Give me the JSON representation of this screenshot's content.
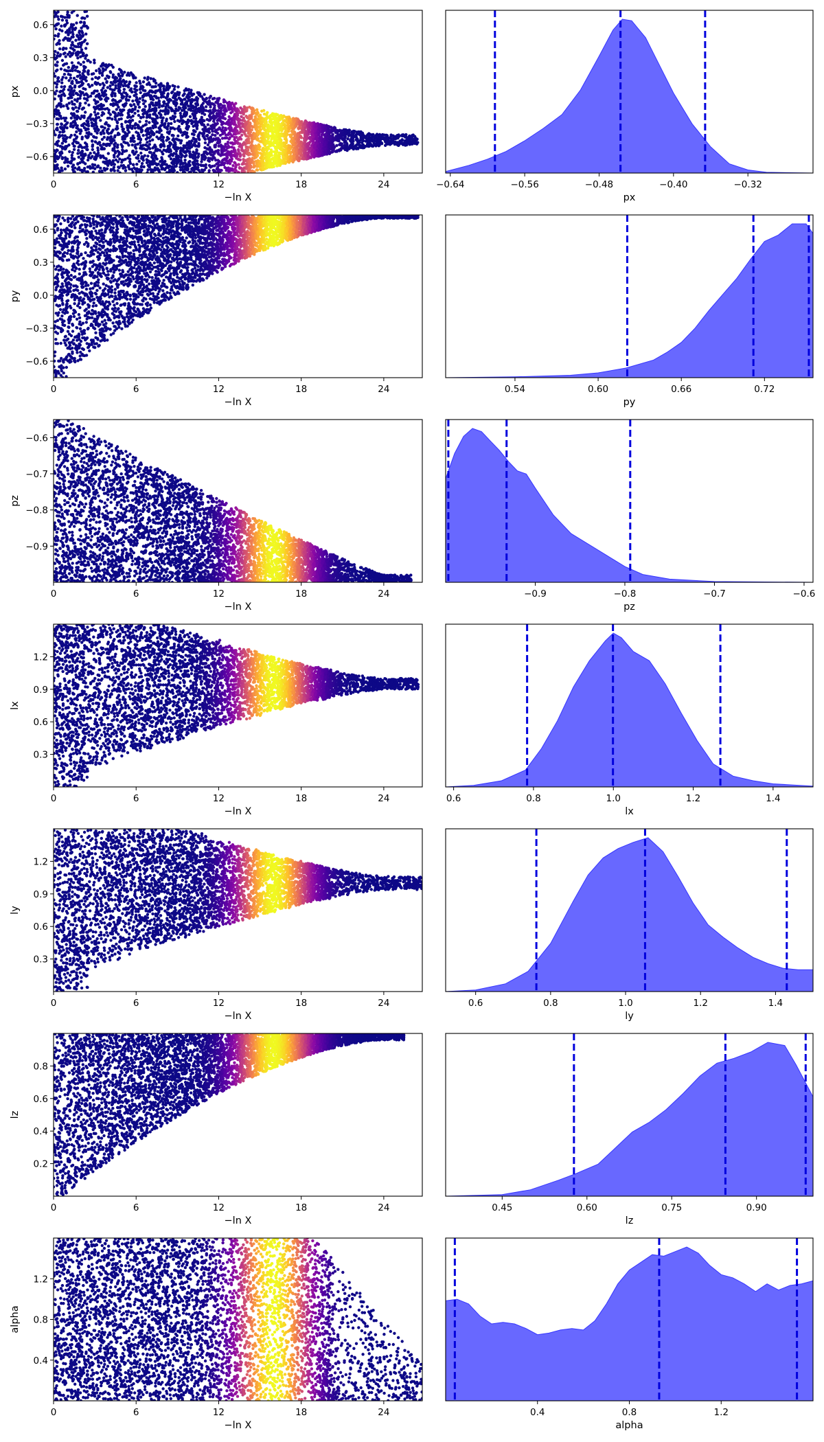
{
  "figure": {
    "x_trace_label": "−ln X",
    "trace_x_ticks": [
      "0",
      "6",
      "12",
      "18",
      "24"
    ],
    "trace_x_values": [
      0,
      6,
      12,
      18,
      24
    ],
    "trace_x_range": [
      0,
      26.8
    ],
    "colormap": "plasma",
    "colormap_colors": [
      "#0d0887",
      "#5302a3",
      "#8b0aa5",
      "#b83289",
      "#db5c68",
      "#f48849",
      "#febd2a",
      "#f0f921"
    ],
    "kde_color": "#5b5bff",
    "credible_line_color": "#0000dd"
  },
  "chart_data": [
    {
      "param": "px",
      "type": "scatter+kde",
      "trace": {
        "ylabel": "px",
        "ylim": [
          -0.75,
          0.73
        ],
        "yticks": [
          "0.6",
          "0.3",
          "0.0",
          "−0.3",
          "−0.6"
        ],
        "ytick_values": [
          0.6,
          0.3,
          0.0,
          -0.3,
          -0.6
        ],
        "shape": "funnel",
        "converge": -0.45,
        "spread_end": 0.05,
        "asym": 0.0,
        "max_x": 26.5
      },
      "marginal": {
        "xlabel": "px",
        "xlim": [
          -0.645,
          -0.25
        ],
        "xticks": [
          "−0.64",
          "−0.56",
          "−0.48",
          "−0.40",
          "−0.32"
        ],
        "xtick_values": [
          -0.64,
          -0.56,
          -0.48,
          -0.4,
          -0.32
        ],
        "credible_lines": [
          -0.592,
          -0.457,
          -0.366
        ],
        "density": [
          [
            -0.645,
            0.01
          ],
          [
            -0.62,
            0.05
          ],
          [
            -0.6,
            0.09
          ],
          [
            -0.58,
            0.14
          ],
          [
            -0.56,
            0.21
          ],
          [
            -0.54,
            0.29
          ],
          [
            -0.52,
            0.38
          ],
          [
            -0.5,
            0.54
          ],
          [
            -0.48,
            0.76
          ],
          [
            -0.465,
            0.93
          ],
          [
            -0.455,
            1.0
          ],
          [
            -0.445,
            0.99
          ],
          [
            -0.43,
            0.88
          ],
          [
            -0.42,
            0.76
          ],
          [
            -0.4,
            0.52
          ],
          [
            -0.38,
            0.32
          ],
          [
            -0.36,
            0.17
          ],
          [
            -0.34,
            0.06
          ],
          [
            -0.32,
            0.02
          ],
          [
            -0.3,
            0.005
          ],
          [
            -0.25,
            0.0
          ]
        ]
      }
    },
    {
      "param": "py",
      "type": "scatter+kde",
      "trace": {
        "ylabel": "py",
        "ylim": [
          -0.75,
          0.73
        ],
        "yticks": [
          "0.6",
          "0.3",
          "0.0",
          "−0.3",
          "−0.6"
        ],
        "ytick_values": [
          0.6,
          0.3,
          0.0,
          -0.3,
          -0.6
        ],
        "shape": "wedge_top",
        "converge": 0.7,
        "spread_end": 0.03,
        "asym": 0.0,
        "max_x": 26.5
      },
      "marginal": {
        "xlabel": "py",
        "xlim": [
          0.49,
          0.755
        ],
        "xticks": [
          "0.54",
          "0.60",
          "0.66",
          "0.72"
        ],
        "xtick_values": [
          0.54,
          0.6,
          0.66,
          0.72
        ],
        "credible_lines": [
          0.621,
          0.712,
          0.752
        ],
        "density": [
          [
            0.49,
            0.0
          ],
          [
            0.54,
            0.005
          ],
          [
            0.58,
            0.015
          ],
          [
            0.6,
            0.03
          ],
          [
            0.62,
            0.06
          ],
          [
            0.64,
            0.11
          ],
          [
            0.65,
            0.16
          ],
          [
            0.66,
            0.22
          ],
          [
            0.67,
            0.31
          ],
          [
            0.68,
            0.42
          ],
          [
            0.69,
            0.52
          ],
          [
            0.7,
            0.62
          ],
          [
            0.71,
            0.74
          ],
          [
            0.72,
            0.85
          ],
          [
            0.73,
            0.89
          ],
          [
            0.74,
            0.96
          ],
          [
            0.75,
            0.96
          ],
          [
            0.755,
            0.9
          ]
        ]
      }
    },
    {
      "param": "pz",
      "type": "scatter+kde",
      "trace": {
        "ylabel": "pz",
        "ylim": [
          -1.0,
          -0.55
        ],
        "yticks": [
          "−0.6",
          "−0.7",
          "−0.8",
          "−0.9"
        ],
        "ytick_values": [
          -0.6,
          -0.7,
          -0.8,
          -0.9
        ],
        "shape": "wedge_bottom",
        "converge": -0.99,
        "spread_end": 0.02,
        "asym": 0.0,
        "max_x": 26.0
      },
      "marginal": {
        "xlabel": "pz",
        "xlim": [
          -1.0,
          -0.59
        ],
        "xticks": [
          "−0.9",
          "−0.8",
          "−0.7",
          "−0.6"
        ],
        "xtick_values": [
          -0.9,
          -0.8,
          -0.7,
          -0.6
        ],
        "credible_lines": [
          -0.997,
          -0.932,
          -0.794
        ],
        "density": [
          [
            -1.0,
            0.66
          ],
          [
            -0.99,
            0.82
          ],
          [
            -0.98,
            0.93
          ],
          [
            -0.97,
            0.98
          ],
          [
            -0.96,
            0.96
          ],
          [
            -0.95,
            0.9
          ],
          [
            -0.94,
            0.84
          ],
          [
            -0.93,
            0.77
          ],
          [
            -0.92,
            0.71
          ],
          [
            -0.91,
            0.69
          ],
          [
            -0.9,
            0.6
          ],
          [
            -0.88,
            0.43
          ],
          [
            -0.86,
            0.31
          ],
          [
            -0.84,
            0.24
          ],
          [
            -0.82,
            0.17
          ],
          [
            -0.8,
            0.1
          ],
          [
            -0.78,
            0.05
          ],
          [
            -0.75,
            0.02
          ],
          [
            -0.7,
            0.005
          ],
          [
            -0.59,
            0.0
          ]
        ]
      }
    },
    {
      "param": "lx",
      "type": "scatter+kde",
      "trace": {
        "ylabel": "lx",
        "ylim": [
          0.0,
          1.5
        ],
        "yticks": [
          "1.2",
          "0.9",
          "0.6",
          "0.3"
        ],
        "ytick_values": [
          1.2,
          0.9,
          0.6,
          0.3
        ],
        "shape": "funnel",
        "converge": 0.95,
        "spread_end": 0.05,
        "asym": 0.4,
        "max_x": 26.5
      },
      "marginal": {
        "xlabel": "lx",
        "xlim": [
          0.58,
          1.5
        ],
        "xticks": [
          "0.6",
          "0.8",
          "1.0",
          "1.2",
          "1.4"
        ],
        "xtick_values": [
          0.6,
          0.8,
          1.0,
          1.2,
          1.4
        ],
        "credible_lines": [
          0.784,
          0.999,
          1.268
        ],
        "density": [
          [
            0.58,
            0.0
          ],
          [
            0.65,
            0.01
          ],
          [
            0.72,
            0.04
          ],
          [
            0.78,
            0.11
          ],
          [
            0.82,
            0.25
          ],
          [
            0.86,
            0.43
          ],
          [
            0.9,
            0.65
          ],
          [
            0.94,
            0.82
          ],
          [
            0.98,
            0.95
          ],
          [
            1.0,
            1.0
          ],
          [
            1.02,
            0.97
          ],
          [
            1.05,
            0.88
          ],
          [
            1.09,
            0.82
          ],
          [
            1.13,
            0.67
          ],
          [
            1.17,
            0.48
          ],
          [
            1.21,
            0.3
          ],
          [
            1.25,
            0.15
          ],
          [
            1.3,
            0.07
          ],
          [
            1.35,
            0.04
          ],
          [
            1.4,
            0.02
          ],
          [
            1.5,
            0.005
          ]
        ]
      }
    },
    {
      "param": "ly",
      "type": "scatter+kde",
      "trace": {
        "ylabel": "ly",
        "ylim": [
          0.0,
          1.5
        ],
        "yticks": [
          "1.2",
          "0.9",
          "0.6",
          "0.3"
        ],
        "ytick_values": [
          1.2,
          0.9,
          0.6,
          0.3
        ],
        "shape": "funnel",
        "converge": 1.0,
        "spread_end": 0.06,
        "asym": 0.3,
        "max_x": 26.8
      },
      "marginal": {
        "xlabel": "ly",
        "xlim": [
          0.52,
          1.5
        ],
        "xticks": [
          "0.6",
          "0.8",
          "1.0",
          "1.2",
          "1.4"
        ],
        "xtick_values": [
          0.6,
          0.8,
          1.0,
          1.2,
          1.4
        ],
        "credible_lines": [
          0.762,
          1.052,
          1.43
        ],
        "density": [
          [
            0.52,
            0.0
          ],
          [
            0.6,
            0.01
          ],
          [
            0.68,
            0.05
          ],
          [
            0.74,
            0.13
          ],
          [
            0.8,
            0.31
          ],
          [
            0.86,
            0.58
          ],
          [
            0.9,
            0.75
          ],
          [
            0.94,
            0.86
          ],
          [
            0.98,
            0.92
          ],
          [
            1.02,
            0.96
          ],
          [
            1.06,
            0.99
          ],
          [
            1.1,
            0.9
          ],
          [
            1.14,
            0.74
          ],
          [
            1.18,
            0.57
          ],
          [
            1.22,
            0.43
          ],
          [
            1.26,
            0.35
          ],
          [
            1.3,
            0.28
          ],
          [
            1.34,
            0.22
          ],
          [
            1.38,
            0.18
          ],
          [
            1.42,
            0.15
          ],
          [
            1.46,
            0.14
          ],
          [
            1.5,
            0.14
          ]
        ]
      }
    },
    {
      "param": "lz",
      "type": "scatter+kde",
      "trace": {
        "ylabel": "lz",
        "ylim": [
          0.0,
          1.0
        ],
        "yticks": [
          "0.8",
          "0.6",
          "0.4",
          "0.2"
        ],
        "ytick_values": [
          0.8,
          0.6,
          0.4,
          0.2
        ],
        "shape": "wedge_top",
        "converge": 0.95,
        "spread_end": 0.04,
        "asym": 0.0,
        "max_x": 25.5
      },
      "marginal": {
        "xlabel": "lz",
        "xlim": [
          0.35,
          1.0
        ],
        "xticks": [
          "0.45",
          "0.60",
          "0.75",
          "0.90"
        ],
        "xtick_values": [
          0.45,
          0.6,
          0.75,
          0.9
        ],
        "credible_lines": [
          0.577,
          0.845,
          0.987
        ],
        "density": [
          [
            0.35,
            0.0
          ],
          [
            0.45,
            0.01
          ],
          [
            0.5,
            0.04
          ],
          [
            0.55,
            0.1
          ],
          [
            0.58,
            0.14
          ],
          [
            0.62,
            0.2
          ],
          [
            0.65,
            0.3
          ],
          [
            0.68,
            0.4
          ],
          [
            0.71,
            0.46
          ],
          [
            0.74,
            0.54
          ],
          [
            0.77,
            0.64
          ],
          [
            0.8,
            0.75
          ],
          [
            0.83,
            0.83
          ],
          [
            0.86,
            0.86
          ],
          [
            0.89,
            0.9
          ],
          [
            0.92,
            0.96
          ],
          [
            0.95,
            0.94
          ],
          [
            0.97,
            0.82
          ],
          [
            1.0,
            0.62
          ]
        ]
      }
    },
    {
      "param": "alpha",
      "type": "scatter+kde",
      "trace": {
        "ylabel": "alpha",
        "ylim": [
          0.0,
          1.6
        ],
        "yticks": [
          "1.2",
          "0.8",
          "0.4"
        ],
        "ytick_values": [
          1.2,
          0.8,
          0.4
        ],
        "shape": "block",
        "converge": 0.8,
        "spread_end": 0.8,
        "asym": 0.0,
        "max_x": 27.0
      },
      "marginal": {
        "xlabel": "alpha",
        "xlim": [
          0.0,
          1.6
        ],
        "xticks": [
          "0.4",
          "0.8",
          "1.2"
        ],
        "xtick_values": [
          0.4,
          0.8,
          1.2
        ],
        "credible_lines": [
          0.04,
          0.93,
          1.53
        ],
        "density": [
          [
            0.0,
            0.65
          ],
          [
            0.05,
            0.66
          ],
          [
            0.1,
            0.63
          ],
          [
            0.15,
            0.55
          ],
          [
            0.2,
            0.5
          ],
          [
            0.25,
            0.51
          ],
          [
            0.3,
            0.5
          ],
          [
            0.35,
            0.47
          ],
          [
            0.4,
            0.43
          ],
          [
            0.45,
            0.44
          ],
          [
            0.5,
            0.46
          ],
          [
            0.55,
            0.47
          ],
          [
            0.6,
            0.46
          ],
          [
            0.65,
            0.52
          ],
          [
            0.7,
            0.63
          ],
          [
            0.75,
            0.76
          ],
          [
            0.8,
            0.85
          ],
          [
            0.85,
            0.9
          ],
          [
            0.9,
            0.95
          ],
          [
            0.95,
            0.94
          ],
          [
            1.0,
            0.97
          ],
          [
            1.05,
            1.0
          ],
          [
            1.1,
            0.96
          ],
          [
            1.15,
            0.88
          ],
          [
            1.2,
            0.82
          ],
          [
            1.25,
            0.8
          ],
          [
            1.3,
            0.76
          ],
          [
            1.35,
            0.71
          ],
          [
            1.4,
            0.76
          ],
          [
            1.45,
            0.72
          ],
          [
            1.5,
            0.75
          ],
          [
            1.55,
            0.76
          ],
          [
            1.6,
            0.78
          ]
        ]
      }
    }
  ]
}
